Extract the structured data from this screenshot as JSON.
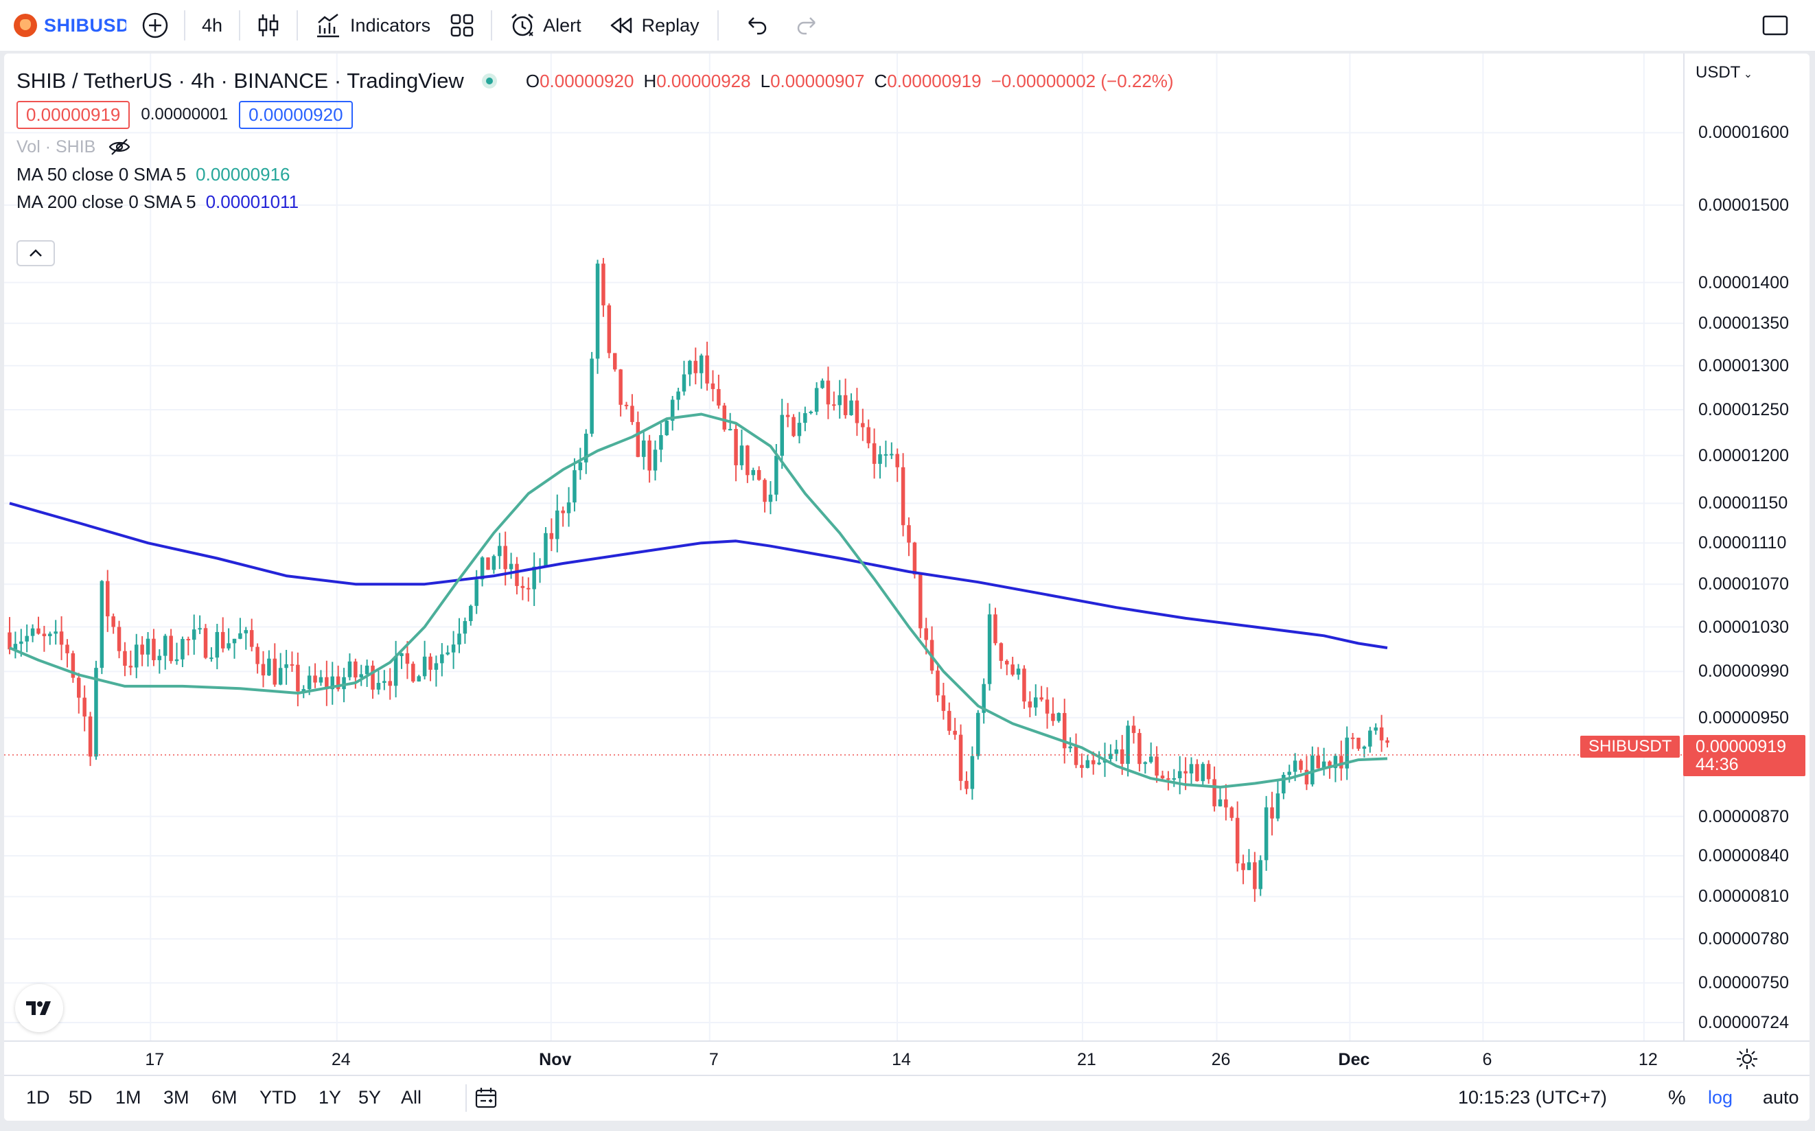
{
  "toolbar": {
    "symbol": "SHIBUSD",
    "interval": "4h",
    "indicators_label": "Indicators",
    "alert_label": "Alert",
    "replay_label": "Replay"
  },
  "legend": {
    "title": "SHIB / TetherUS · 4h · BINANCE · TradingView",
    "open_label": "O",
    "open_value": "0.00000920",
    "high_label": "H",
    "high_value": "0.00000928",
    "low_label": "L",
    "low_value": "0.00000907",
    "close_label": "C",
    "close_value": "0.00000919",
    "change": "−0.00000002 (−0.22%)",
    "bid": "0.00000919",
    "spread": "0.00000001",
    "ask": "0.00000920",
    "volume_label": "Vol · SHIB",
    "ma50_label": "MA 50 close 0 SMA 5",
    "ma50_value": "0.00000916",
    "ma200_label": "MA 200 close 0 SMA 5",
    "ma200_value": "0.00001011"
  },
  "price_axis": {
    "currency": "USDT",
    "labels": [
      "0.00001600",
      "0.00001500",
      "0.00001400",
      "0.00001350",
      "0.00001300",
      "0.00001250",
      "0.00001200",
      "0.00001150",
      "0.00001110",
      "0.00001070",
      "0.00001030",
      "0.00000990",
      "0.00000950",
      "0.00000870",
      "0.00000840",
      "0.00000810",
      "0.00000780",
      "0.00000750",
      "0.00000724"
    ],
    "current_price": "0.00000919",
    "countdown": "44:36",
    "current_symbol": "SHIBUSDT"
  },
  "time_axis": {
    "labels": [
      "17",
      "24",
      "Nov",
      "7",
      "14",
      "21",
      "26",
      "Dec",
      "6",
      "12"
    ]
  },
  "bottom_bar": {
    "ranges": [
      "1D",
      "5D",
      "1M",
      "3M",
      "6M",
      "YTD",
      "1Y",
      "5Y",
      "All"
    ],
    "clock": "10:15:23 (UTC+7)",
    "percent": "%",
    "log": "log",
    "auto": "auto"
  },
  "colors": {
    "up": "#26a69a",
    "down": "#ef5350",
    "ma50": "#4caf9a",
    "ma200": "#2424d8",
    "accent": "#2962ff"
  },
  "chart_data": {
    "type": "candlestick",
    "symbol": "SHIBUSDT",
    "interval": "4h",
    "scale": "log",
    "x_range": [
      "Oct 12",
      "Dec 2"
    ],
    "y_range": [
      7.24e-06,
      1.65e-05
    ],
    "current_price": 9.19e-06,
    "ma50_points": [
      [
        0,
        1.011e-05
      ],
      [
        5,
        1e-05
      ],
      [
        12,
        9.87e-06
      ],
      [
        20,
        9.77e-06
      ],
      [
        30,
        9.77e-06
      ],
      [
        40,
        9.75e-06
      ],
      [
        50,
        9.71e-06
      ],
      [
        60,
        9.8e-06
      ],
      [
        66,
        9.98e-06
      ],
      [
        72,
        1.03e-05
      ],
      [
        78,
        1.075e-05
      ],
      [
        84,
        1.12e-05
      ],
      [
        90,
        1.16e-05
      ],
      [
        96,
        1.185e-05
      ],
      [
        102,
        1.205e-05
      ],
      [
        108,
        1.22e-05
      ],
      [
        114,
        1.24e-05
      ],
      [
        120,
        1.245e-05
      ],
      [
        126,
        1.235e-05
      ],
      [
        132,
        1.21e-05
      ],
      [
        138,
        1.16e-05
      ],
      [
        144,
        1.12e-05
      ],
      [
        150,
        1.075e-05
      ],
      [
        156,
        1.03e-05
      ],
      [
        162,
        9.9e-06
      ],
      [
        168,
        9.6e-06
      ],
      [
        174,
        9.45e-06
      ],
      [
        180,
        9.35e-06
      ],
      [
        186,
        9.25e-06
      ],
      [
        192,
        9.1e-06
      ],
      [
        198,
        9e-06
      ],
      [
        204,
        8.95e-06
      ],
      [
        210,
        8.93e-06
      ],
      [
        216,
        8.96e-06
      ],
      [
        222,
        9e-06
      ],
      [
        228,
        9.08e-06
      ],
      [
        234,
        9.15e-06
      ],
      [
        239,
        9.16e-06
      ]
    ],
    "ma200_points": [
      [
        0,
        1.15e-05
      ],
      [
        12,
        1.13e-05
      ],
      [
        24,
        1.11e-05
      ],
      [
        36,
        1.095e-05
      ],
      [
        48,
        1.078e-05
      ],
      [
        60,
        1.07e-05
      ],
      [
        72,
        1.07e-05
      ],
      [
        84,
        1.078e-05
      ],
      [
        96,
        1.09e-05
      ],
      [
        108,
        1.1e-05
      ],
      [
        120,
        1.11e-05
      ],
      [
        126,
        1.112e-05
      ],
      [
        132,
        1.107e-05
      ],
      [
        144,
        1.095e-05
      ],
      [
        156,
        1.082e-05
      ],
      [
        168,
        1.072e-05
      ],
      [
        180,
        1.06e-05
      ],
      [
        192,
        1.048e-05
      ],
      [
        204,
        1.038e-05
      ],
      [
        216,
        1.03e-05
      ],
      [
        228,
        1.022e-05
      ],
      [
        234,
        1.015e-05
      ],
      [
        239,
        1.011e-05
      ]
    ]
  }
}
